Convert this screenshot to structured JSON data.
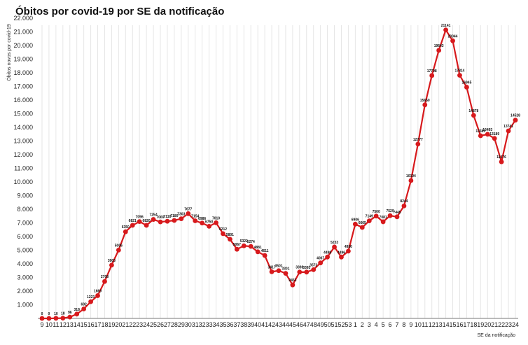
{
  "chart_data": {
    "type": "line",
    "title": "Óbitos por covid-19 por SE da notificação",
    "xlabel": "SE da notificação",
    "ylabel": "Óbitos novos por covid-19",
    "ylim": [
      0,
      22000
    ],
    "yticks": [
      "1.000",
      "2.000",
      "3.000",
      "4.000",
      "5.000",
      "6.000",
      "7.000",
      "8.000",
      "9.000",
      "10.000",
      "11.000",
      "12.000",
      "13.000",
      "14.000",
      "15.000",
      "16.000",
      "17.000",
      "18.000",
      "19.000",
      "20.000",
      "21.000",
      "22.000"
    ],
    "ytick_values": [
      1000,
      2000,
      3000,
      4000,
      5000,
      6000,
      7000,
      8000,
      9000,
      10000,
      11000,
      12000,
      13000,
      14000,
      15000,
      16000,
      17000,
      18000,
      19000,
      20000,
      21000,
      22000
    ],
    "grid": "vertical",
    "categories": [
      "9",
      "10",
      "11",
      "12",
      "13",
      "14",
      "15",
      "16",
      "17",
      "18",
      "19",
      "20",
      "21",
      "22",
      "23",
      "24",
      "25",
      "26",
      "27",
      "28",
      "29",
      "30",
      "31",
      "32",
      "33",
      "34",
      "35",
      "36",
      "37",
      "38",
      "39",
      "40",
      "41",
      "42",
      "43",
      "44",
      "45",
      "46",
      "47",
      "48",
      "49",
      "50",
      "51",
      "52",
      "53",
      "1",
      "2",
      "3",
      "4",
      "5",
      "6",
      "7",
      "8",
      "9",
      "10",
      "11",
      "12",
      "13",
      "14",
      "15",
      "16",
      "17",
      "18",
      "19",
      "20",
      "21",
      "22",
      "23",
      "24"
    ],
    "series": [
      {
        "color": "#d7191c",
        "values": [
          0,
          0,
          10,
          18,
          96,
          318,
          692,
          1223,
          1669,
          2708,
          3903,
          5006,
          6350,
          6821,
          7096,
          6820,
          7254,
          7069,
          7118,
          7180,
          7303,
          7677,
          7154,
          6986,
          6750,
          7010,
          6212,
          5801,
          5067,
          5322,
          5274,
          4881,
          4611,
          3417,
          3501,
          3301,
          2453,
          3398,
          3393,
          3572,
          4067,
          4498,
          5233,
          4496,
          4930,
          6906,
          6665,
          7149,
          7500,
          7081,
          7529,
          7445,
          8244,
          10104,
          12777,
          15650,
          17798,
          19643,
          21141,
          20344,
          17814,
          16945,
          14878,
          13385,
          13493,
          13189,
          11476,
          13741,
          14528
        ],
        "labels": [
          "0",
          "0",
          "10",
          "18",
          "96",
          "318",
          "692",
          "1223",
          "1669",
          "2708",
          "3903",
          "5006",
          "6350",
          "6821",
          "7096",
          "6820",
          "7254",
          "7069",
          "7118",
          "7180",
          "7303",
          "7677",
          "7154",
          "6986",
          "6750",
          "7010",
          "6212",
          "5801",
          "5067",
          "5322",
          "5274",
          "4881",
          "4611",
          "3417",
          "3501",
          "3301",
          "2453",
          "3398",
          "3393",
          "3572",
          "4067",
          "4498",
          "5233",
          "4496",
          "4930",
          "6906",
          "6665",
          "7149",
          "7500",
          "7081",
          "7529",
          "7445",
          "8244",
          "10104",
          "12777",
          "15650",
          "17798",
          "19643",
          "21141",
          "20344",
          "17814",
          "16945",
          "14878",
          "13385",
          "13493",
          "13189",
          "11476",
          "13741",
          "14528"
        ]
      }
    ]
  }
}
